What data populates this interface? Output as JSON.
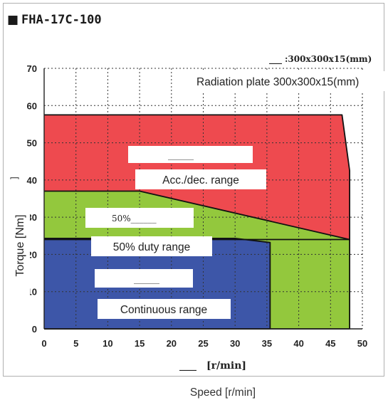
{
  "chart_data": {
    "type": "area",
    "title": "FHA-17C-100",
    "title_marker": "■",
    "xlabel_overlay": "[r/min]",
    "xlabel_overlay_blank": "____",
    "ylabel": "Torque [Nm]",
    "ylabel_fragment": "]",
    "caption": "Speed [r/min]",
    "xlim": [
      0,
      50
    ],
    "ylim": [
      0,
      70
    ],
    "xticks": [
      0,
      5,
      10,
      15,
      20,
      25,
      30,
      35,
      40,
      45,
      50
    ],
    "yticks": [
      0,
      10,
      20,
      30,
      40,
      50,
      60,
      70
    ],
    "grid": true,
    "regions": [
      {
        "name": "Acc./dec. range",
        "color": "#ee4a4f",
        "points": [
          [
            0,
            57.5
          ],
          [
            46.8,
            57.5
          ],
          [
            48,
            42.5
          ],
          [
            48,
            24
          ],
          [
            0,
            24
          ]
        ]
      },
      {
        "name": "50% duty range",
        "color": "#93c83d",
        "points": [
          [
            0,
            37
          ],
          [
            15,
            37
          ],
          [
            48,
            24
          ],
          [
            48,
            0
          ],
          [
            0,
            0
          ]
        ]
      },
      {
        "name": "Continuous range",
        "color": "#3d56a8",
        "points": [
          [
            0,
            24.3
          ],
          [
            30,
            24.3
          ],
          [
            35.5,
            23.2
          ],
          [
            35.5,
            0
          ],
          [
            0,
            0
          ]
        ]
      }
    ],
    "annotations": {
      "radiation_small": ":300x300x15(mm)",
      "radiation_blank": "___",
      "radiation_plate": "Radiation plate 300x300x15(mm)",
      "acc_dec_label": "Acc./dec. range",
      "acc_dec_blank": "______",
      "duty_blank": "50%______",
      "duty_label": "50% duty range",
      "continuous_blank": "______",
      "continuous_label": "Continuous range"
    }
  }
}
